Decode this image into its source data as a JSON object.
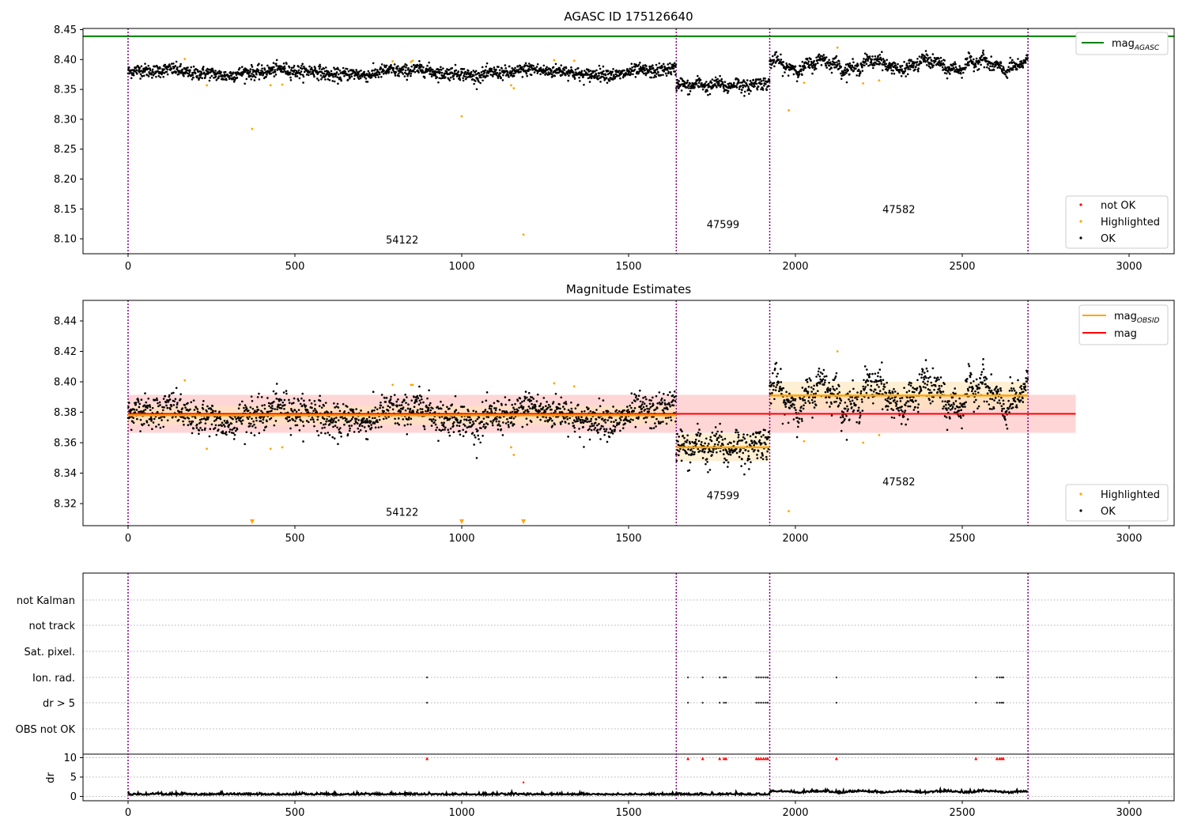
{
  "colors": {
    "ok": "#000000",
    "highlighted": "#ffa500",
    "not_ok": "#ff0000",
    "agasc_line": "#008000",
    "mag_line": "#ff0000",
    "mag_obsid_line": "#ffa500",
    "band_mag": "#ffcccc",
    "band_obsid": "#ffe4b5",
    "boundary": "#800080",
    "grid": "#b0b0b0"
  },
  "boundaries": [
    0,
    1643,
    1923,
    2697
  ],
  "segments": [
    {
      "obsid": "54122",
      "start": 0,
      "end": 1643,
      "mag1": 8.3785,
      "mag2": 8.378,
      "std": 0.006
    },
    {
      "obsid": "47599",
      "start": 1643,
      "end": 1923,
      "mag1": 8.357,
      "mag2": 8.357,
      "std": 0.009
    },
    {
      "obsid": "47582",
      "start": 1923,
      "end": 2697,
      "mag1": 8.391,
      "mag2": 8.391,
      "std": 0.009
    }
  ],
  "chart_data": [
    {
      "type": "scatter",
      "title": "AGASC ID 175126640",
      "xlim": [
        -135,
        3135
      ],
      "ylim": [
        8.075,
        8.452
      ],
      "xticks": [
        "0",
        "500",
        "1000",
        "1500",
        "2000",
        "2500",
        "3000"
      ],
      "yticks": [
        "8.10",
        "8.15",
        "8.20",
        "8.25",
        "8.30",
        "8.35",
        "8.40",
        "8.45"
      ],
      "agasc_mag": 8.439,
      "legend_top": {
        "position": "top-right",
        "entries": [
          {
            "label": "mag",
            "sub": "AGASC",
            "kind": "line",
            "color_key": "agasc_line"
          }
        ]
      },
      "legend_bottom": {
        "position": "bottom-right",
        "entries": [
          {
            "label": "not OK",
            "color_key": "not_ok"
          },
          {
            "label": "Highlighted",
            "color_key": "highlighted"
          },
          {
            "label": "OK",
            "color_key": "ok"
          }
        ]
      },
      "segment_label_y": [
        8.092,
        8.118,
        8.143
      ],
      "highlighted": [
        [
          170,
          8.401
        ],
        [
          236,
          8.357
        ],
        [
          372,
          8.284
        ],
        [
          427,
          8.357
        ],
        [
          462,
          8.358
        ],
        [
          793,
          8.397
        ],
        [
          848,
          8.396
        ],
        [
          853,
          8.398
        ],
        [
          1000,
          8.305
        ],
        [
          1148,
          8.357
        ],
        [
          1156,
          8.352
        ],
        [
          1185,
          8.107
        ],
        [
          1277,
          8.399
        ],
        [
          1337,
          8.398
        ],
        [
          1980,
          8.315
        ],
        [
          2026,
          8.361
        ],
        [
          2126,
          8.42
        ],
        [
          2203,
          8.36
        ],
        [
          2251,
          8.365
        ]
      ]
    },
    {
      "type": "scatter",
      "title": "Magnitude Estimates",
      "xlim": [
        -135,
        3135
      ],
      "ylim": [
        8.3055,
        8.4535
      ],
      "xticks": [
        "0",
        "500",
        "1000",
        "1500",
        "2000",
        "2500",
        "3000"
      ],
      "yticks": [
        "8.32",
        "8.34",
        "8.36",
        "8.38",
        "8.40",
        "8.42",
        "8.44"
      ],
      "mag": 8.379,
      "mag_std": 0.0125,
      "mag_xrange": [
        0,
        2840
      ],
      "legend_top": {
        "position": "top-right",
        "entries": [
          {
            "label": "mag",
            "sub": "OBSID",
            "kind": "line",
            "color_key": "mag_obsid_line"
          },
          {
            "label": "mag",
            "sub": "",
            "kind": "line",
            "color_key": "mag_line"
          }
        ]
      },
      "legend_bottom": {
        "position": "bottom-right",
        "entries": [
          {
            "label": "Highlighted",
            "color_key": "highlighted"
          },
          {
            "label": "OK",
            "color_key": "ok"
          }
        ]
      },
      "segment_label_y": [
        8.312,
        8.323,
        8.332
      ],
      "highlighted": [
        [
          170,
          8.401
        ],
        [
          236,
          8.356
        ],
        [
          427,
          8.356
        ],
        [
          462,
          8.357
        ],
        [
          793,
          8.398
        ],
        [
          848,
          8.398
        ],
        [
          853,
          8.398
        ],
        [
          1148,
          8.357
        ],
        [
          1156,
          8.352
        ],
        [
          1277,
          8.399
        ],
        [
          1337,
          8.397
        ],
        [
          1980,
          8.315
        ],
        [
          2026,
          8.361
        ],
        [
          2126,
          8.42
        ],
        [
          2203,
          8.36
        ],
        [
          2251,
          8.365
        ]
      ],
      "below_axis_markers": [
        372,
        1000,
        1185
      ]
    },
    {
      "type": "scatter",
      "title": "",
      "xlim": [
        -135,
        3135
      ],
      "xticks": [
        "0",
        "500",
        "1000",
        "1500",
        "2000",
        "2500",
        "3000"
      ],
      "flag_rows": [
        "not Kalman",
        "not track",
        "Sat. pixel.",
        "Ion. rad.",
        "dr > 5",
        "OBS not OK"
      ],
      "flag_points": {
        "Ion. rad.": [
          896,
          1678,
          1722,
          1773,
          1786,
          1792,
          1883,
          1890,
          1897,
          1904,
          1911,
          1917,
          2123,
          2541,
          2604,
          2612,
          2618,
          2623
        ],
        "dr > 5": [
          896,
          1678,
          1722,
          1773,
          1786,
          1792,
          1883,
          1890,
          1897,
          1904,
          1911,
          1917,
          2123,
          2541,
          2604,
          2612,
          2618,
          2623
        ]
      },
      "dr_ylabel": "dr",
      "dr_yticks": [
        "0",
        "5",
        "10"
      ],
      "dr_ylim": [
        -0.5,
        10.3
      ],
      "dr_capped": [
        896,
        1678,
        1722,
        1773,
        1786,
        1792,
        1883,
        1890,
        1897,
        1904,
        1911,
        1917,
        2123,
        2541,
        2604,
        2612,
        2618,
        2623
      ],
      "dr_outliers": [
        [
          1185,
          3.6
        ]
      ]
    }
  ]
}
